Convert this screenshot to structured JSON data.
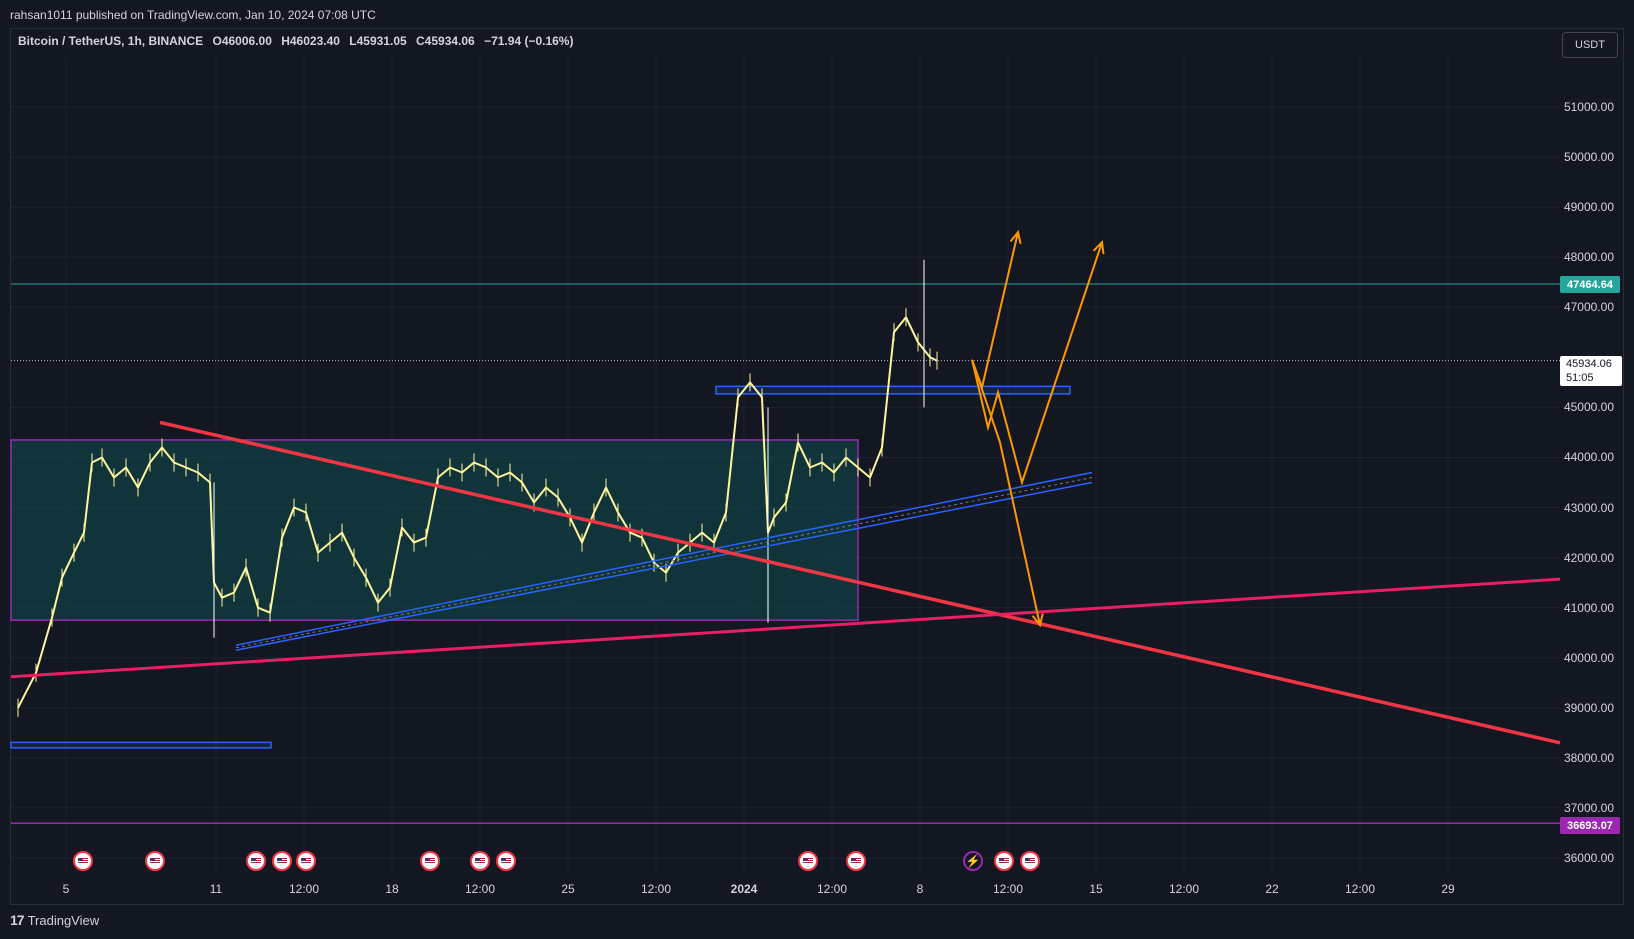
{
  "header": {
    "publisher": "rahsan1011 published on TradingView.com, Jan 10, 2024 07:08 UTC"
  },
  "symbol": {
    "name": "Bitcoin / TetherUS, 1h, BINANCE",
    "open": "O46006.00",
    "high": "H46023.40",
    "low": "L45931.05",
    "close": "C45934.06",
    "change": "−71.94 (−0.16%)"
  },
  "currency_button": "USDT",
  "price_axis": {
    "labels": [
      "51000.00",
      "50000.00",
      "49000.00",
      "48000.00",
      "47000.00",
      "45000.00",
      "44000.00",
      "43000.00",
      "42000.00",
      "41000.00",
      "40000.00",
      "39000.00",
      "38000.00",
      "37000.00",
      "36000.00"
    ],
    "resistance_tag": "47464.64",
    "support_tag": "36693.07",
    "current_price": "45934.06",
    "countdown": "51:05"
  },
  "time_axis": {
    "labels": [
      {
        "text": "5",
        "bold": false
      },
      {
        "text": "11",
        "bold": false
      },
      {
        "text": "12:00",
        "bold": false
      },
      {
        "text": "18",
        "bold": false
      },
      {
        "text": "12:00",
        "bold": false
      },
      {
        "text": "25",
        "bold": false
      },
      {
        "text": "12:00",
        "bold": false
      },
      {
        "text": "2024",
        "bold": true
      },
      {
        "text": "12:00",
        "bold": false
      },
      {
        "text": "8",
        "bold": false
      },
      {
        "text": "12:00",
        "bold": false
      },
      {
        "text": "15",
        "bold": false
      },
      {
        "text": "12:00",
        "bold": false
      },
      {
        "text": "22",
        "bold": false
      },
      {
        "text": "12:00",
        "bold": false
      },
      {
        "text": "29",
        "bold": false
      }
    ]
  },
  "footer": {
    "logo_mark": "17",
    "brand": "TradingView"
  },
  "colors": {
    "background": "#131722",
    "candles": "#fff59d",
    "trend_red": "#f23645",
    "trend_pink": "#e91e63",
    "channel_blue": "#2962ff",
    "range_fill": "#0e4d4f",
    "range_border": "#9c27b0",
    "arrows": "#ff9800",
    "resistance_line": "#26a69a",
    "support_line": "#9c27b0"
  },
  "chart_data": {
    "type": "line",
    "title": "Bitcoin / TetherUS, 1h, BINANCE",
    "xlabel": "",
    "ylabel": "",
    "ylim": [
      35700,
      52000
    ],
    "x_range": [
      "2023-12-03",
      "2024-01-31"
    ],
    "series": [
      {
        "values": [
          [
            "2023-12-03 00:00",
            39000
          ],
          [
            "2023-12-03 18:00",
            39700
          ],
          [
            "2023-12-04 10:00",
            40800
          ],
          [
            "2023-12-04 20:00",
            41600
          ],
          [
            "2023-12-05 08:00",
            42100
          ],
          [
            "2023-12-05 18:00",
            42500
          ],
          [
            "2023-12-06 02:00",
            43900
          ],
          [
            "2023-12-06 12:00",
            44000
          ],
          [
            "2023-12-07 00:00",
            43600
          ],
          [
            "2023-12-07 12:00",
            43800
          ],
          [
            "2023-12-08 00:00",
            43400
          ],
          [
            "2023-12-08 12:00",
            43900
          ],
          [
            "2023-12-09 00:00",
            44200
          ],
          [
            "2023-12-09 12:00",
            43900
          ],
          [
            "2023-12-10 00:00",
            43800
          ],
          [
            "2023-12-10 12:00",
            43700
          ],
          [
            "2023-12-11 00:00",
            43500
          ],
          [
            "2023-12-11 04:00",
            41500
          ],
          [
            "2023-12-11 12:00",
            41200
          ],
          [
            "2023-12-12 00:00",
            41300
          ],
          [
            "2023-12-12 12:00",
            41800
          ],
          [
            "2023-12-13 00:00",
            41000
          ],
          [
            "2023-12-13 12:00",
            40900
          ],
          [
            "2023-12-14 00:00",
            42400
          ],
          [
            "2023-12-14 12:00",
            43000
          ],
          [
            "2023-12-15 00:00",
            42900
          ],
          [
            "2023-12-15 12:00",
            42100
          ],
          [
            "2023-12-16 00:00",
            42300
          ],
          [
            "2023-12-16 12:00",
            42500
          ],
          [
            "2023-12-17 00:00",
            42000
          ],
          [
            "2023-12-17 12:00",
            41600
          ],
          [
            "2023-12-18 00:00",
            41100
          ],
          [
            "2023-12-18 12:00",
            41400
          ],
          [
            "2023-12-19 00:00",
            42600
          ],
          [
            "2023-12-19 12:00",
            42300
          ],
          [
            "2023-12-20 00:00",
            42400
          ],
          [
            "2023-12-20 12:00",
            43600
          ],
          [
            "2023-12-21 00:00",
            43800
          ],
          [
            "2023-12-21 12:00",
            43700
          ],
          [
            "2023-12-22 00:00",
            43900
          ],
          [
            "2023-12-22 12:00",
            43800
          ],
          [
            "2023-12-23 00:00",
            43600
          ],
          [
            "2023-12-23 12:00",
            43700
          ],
          [
            "2023-12-24 00:00",
            43500
          ],
          [
            "2023-12-24 12:00",
            43100
          ],
          [
            "2023-12-25 00:00",
            43400
          ],
          [
            "2023-12-25 12:00",
            43200
          ],
          [
            "2023-12-26 00:00",
            42800
          ],
          [
            "2023-12-26 12:00",
            42300
          ],
          [
            "2023-12-27 00:00",
            42900
          ],
          [
            "2023-12-27 12:00",
            43400
          ],
          [
            "2023-12-28 00:00",
            42900
          ],
          [
            "2023-12-28 12:00",
            42500
          ],
          [
            "2023-12-29 00:00",
            42400
          ],
          [
            "2023-12-29 12:00",
            41900
          ],
          [
            "2023-12-30 00:00",
            41700
          ],
          [
            "2023-12-30 12:00",
            42100
          ],
          [
            "2023-12-31 00:00",
            42300
          ],
          [
            "2023-12-31 12:00",
            42500
          ],
          [
            "2024-01-01 00:00",
            42300
          ],
          [
            "2024-01-01 12:00",
            42900
          ],
          [
            "2024-01-02 00:00",
            45200
          ],
          [
            "2024-01-02 12:00",
            45500
          ],
          [
            "2024-01-03 00:00",
            45200
          ],
          [
            "2024-01-03 06:00",
            42500
          ],
          [
            "2024-01-03 12:00",
            42800
          ],
          [
            "2024-01-04 00:00",
            43100
          ],
          [
            "2024-01-04 12:00",
            44300
          ],
          [
            "2024-01-05 00:00",
            43800
          ],
          [
            "2024-01-05 12:00",
            43900
          ],
          [
            "2024-01-06 00:00",
            43700
          ],
          [
            "2024-01-06 12:00",
            44000
          ],
          [
            "2024-01-07 00:00",
            43800
          ],
          [
            "2024-01-07 12:00",
            43600
          ],
          [
            "2024-01-08 00:00",
            44200
          ],
          [
            "2024-01-08 12:00",
            46500
          ],
          [
            "2024-01-09 00:00",
            46800
          ],
          [
            "2024-01-09 12:00",
            46300
          ],
          [
            "2024-01-10 00:00",
            46000
          ],
          [
            "2024-01-10 07:00",
            45934
          ]
        ]
      }
    ]
  }
}
